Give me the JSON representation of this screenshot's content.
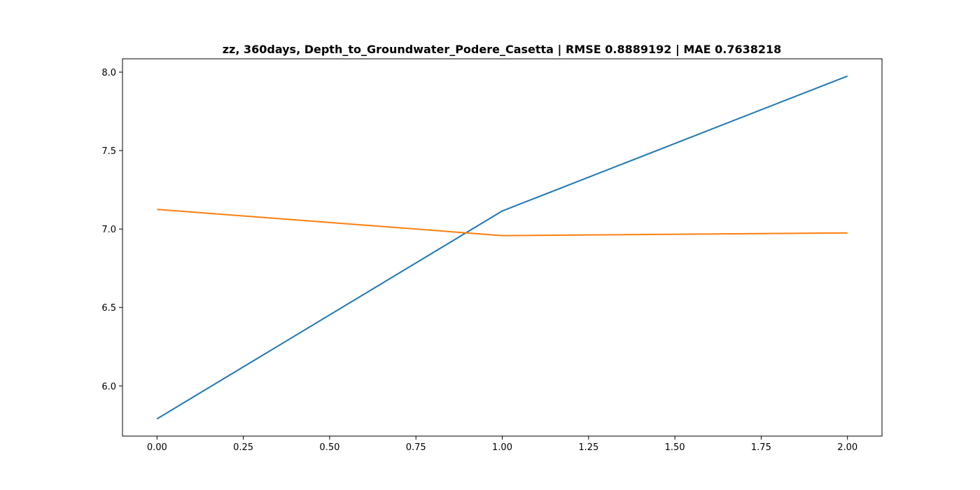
{
  "chart_data": {
    "type": "line",
    "title": "zz, 360days, Depth_to_Groundwater_Podere_Casetta | RMSE 0.8889192 | MAE 0.7638218",
    "xlabel": "",
    "ylabel": "",
    "x": [
      0,
      1,
      2
    ],
    "series": [
      {
        "values": [
          5.79,
          7.115,
          7.975
        ],
        "color": "#1f77b4"
      },
      {
        "values": [
          7.125,
          6.958,
          6.975
        ],
        "color": "#ff7f0e"
      }
    ],
    "xlim": [
      -0.1,
      2.1
    ],
    "ylim": [
      5.68,
      8.085
    ],
    "xticks": [
      0.0,
      0.25,
      0.5,
      0.75,
      1.0,
      1.25,
      1.5,
      1.75,
      2.0
    ],
    "xtick_labels": [
      "0.00",
      "0.25",
      "0.50",
      "0.75",
      "1.00",
      "1.25",
      "1.50",
      "1.75",
      "2.00"
    ],
    "yticks": [
      6.0,
      6.5,
      7.0,
      7.5,
      8.0
    ],
    "ytick_labels": [
      "6.0",
      "6.5",
      "7.0",
      "7.5",
      "8.0"
    ],
    "grid": false,
    "legend": "none"
  }
}
